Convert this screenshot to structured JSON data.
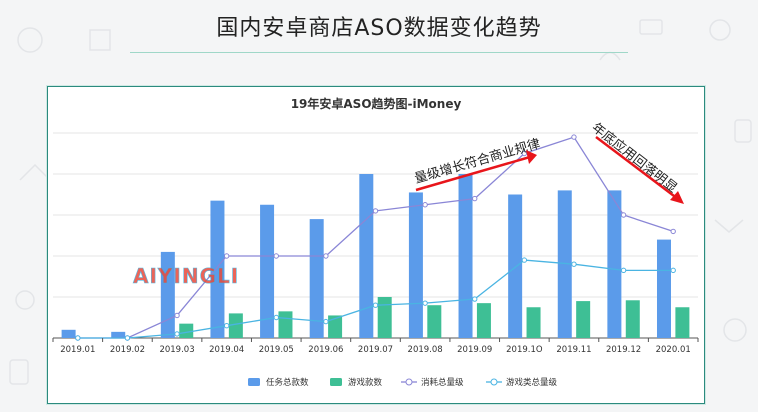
{
  "slide": {
    "title": "国内安卓商店ASO数据变化趋势"
  },
  "watermark": "AIYINGLI",
  "chart_data": {
    "type": "bar",
    "title": "19年安卓ASO趋势图-iMoney",
    "categories": [
      "2019.01",
      "2019.02",
      "2019.03",
      "2019.04",
      "2019.05",
      "2019.06",
      "2019.07",
      "2019.08",
      "2019.09",
      "2019.1O",
      "2019.11",
      "2019.12",
      "2020.01"
    ],
    "series": [
      {
        "name": "任务总款数",
        "type": "bar",
        "color": "#5b9bea",
        "values": [
          2,
          1.5,
          21,
          33.5,
          32.5,
          29,
          40,
          35.5,
          40,
          35,
          36,
          36,
          24
        ]
      },
      {
        "name": "游戏款数",
        "type": "bar",
        "color": "#3ebf95",
        "values": [
          0,
          0,
          3.5,
          6,
          6.5,
          5.5,
          10,
          8,
          8.5,
          7.5,
          9,
          9.2,
          7.5
        ]
      },
      {
        "name": "消耗总量级",
        "type": "line",
        "color": "#8a86d6",
        "values": [
          0,
          0,
          5.5,
          20,
          20,
          20,
          31,
          32.5,
          34,
          45,
          49,
          30,
          26
        ]
      },
      {
        "name": "游戏类总量级",
        "type": "line",
        "color": "#4ab4e2",
        "values": [
          0,
          0,
          1,
          3,
          5,
          4,
          8,
          8.5,
          9.5,
          19,
          18,
          16.5,
          16.5
        ]
      }
    ],
    "ylim": [
      0,
      50
    ],
    "legend_position": "bottom",
    "annotations": [
      {
        "text": "量级增长符合商业规律",
        "arrow": "up-right"
      },
      {
        "text": "年底应用回落明显",
        "arrow": "down-right"
      }
    ]
  },
  "colors": {
    "arrow": "#e8151b",
    "border": "#2b8a7e"
  }
}
